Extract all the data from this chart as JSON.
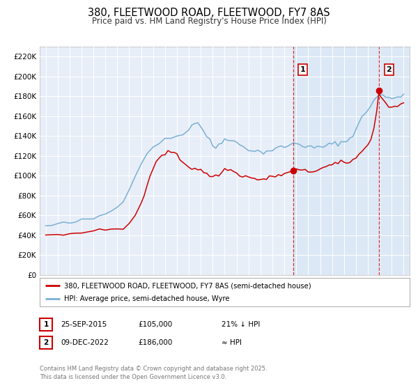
{
  "title": "380, FLEETWOOD ROAD, FLEETWOOD, FY7 8AS",
  "subtitle": "Price paid vs. HM Land Registry's House Price Index (HPI)",
  "title_fontsize": 10.5,
  "subtitle_fontsize": 8.5,
  "background_color": "#ffffff",
  "plot_bg_color": "#e8eef8",
  "grid_color": "#ffffff",
  "red_color": "#cc0000",
  "blue_color": "#7ab0d4",
  "shade_color": "#dce8f5",
  "sale1_date_num": 2015.73,
  "sale1_price": 105000,
  "sale1_label": "1",
  "sale2_date_num": 2022.94,
  "sale2_price": 186000,
  "sale2_label": "2",
  "legend_line1": "380, FLEETWOOD ROAD, FLEETWOOD, FY7 8AS (semi-detached house)",
  "legend_line2": "HPI: Average price, semi-detached house, Wyre",
  "table_row1": [
    "1",
    "25-SEP-2015",
    "£105,000",
    "21% ↓ HPI"
  ],
  "table_row2": [
    "2",
    "09-DEC-2022",
    "£186,000",
    "≈ HPI"
  ],
  "footer": "Contains HM Land Registry data © Crown copyright and database right 2025.\nThis data is licensed under the Open Government Licence v3.0.",
  "ylim": [
    0,
    230000
  ],
  "xlim_start": 1994.5,
  "xlim_end": 2025.5
}
